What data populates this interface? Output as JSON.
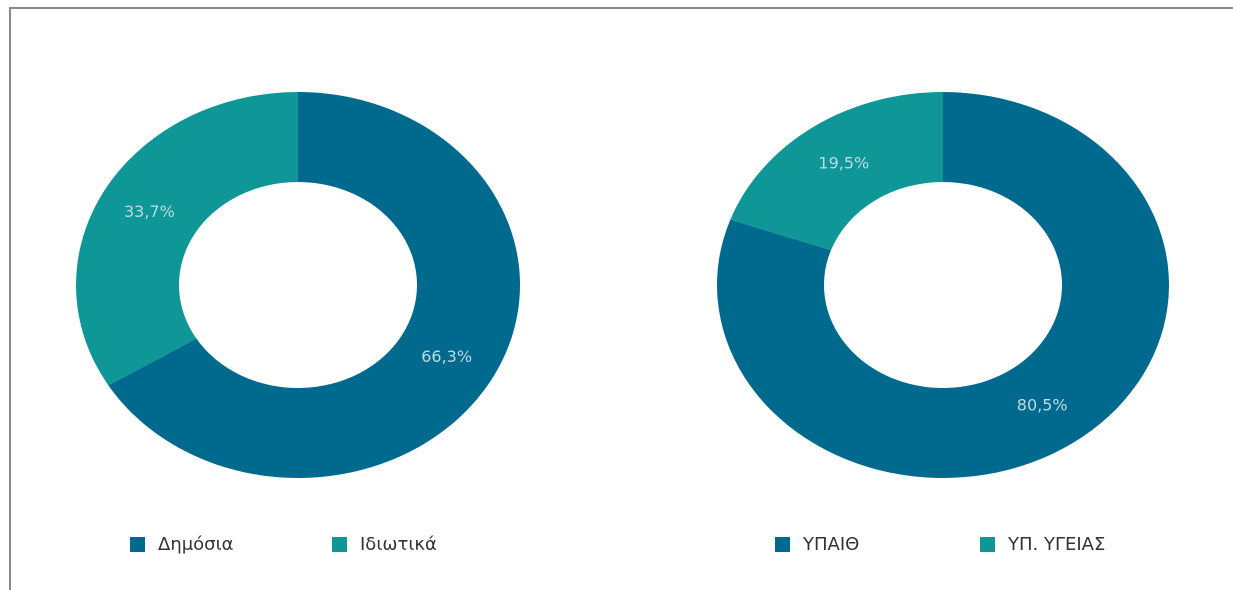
{
  "chart_data": [
    {
      "type": "donut",
      "categories": [
        "Δημόσια",
        "Ιδιωτικά"
      ],
      "values": [
        66.3,
        33.7
      ],
      "value_labels": [
        "66,3%",
        "33,7%"
      ],
      "colors": [
        "#006a8e",
        "#0f9797"
      ],
      "legend": "bottom"
    },
    {
      "type": "donut",
      "categories": [
        "ΥΠΑΙΘ",
        "ΥΠ. ΥΓΕΙΑΣ"
      ],
      "values": [
        80.5,
        19.5
      ],
      "value_labels": [
        "80,5%",
        "19,5%"
      ],
      "colors": [
        "#006a8e",
        "#0f9797"
      ],
      "legend": "bottom"
    }
  ]
}
